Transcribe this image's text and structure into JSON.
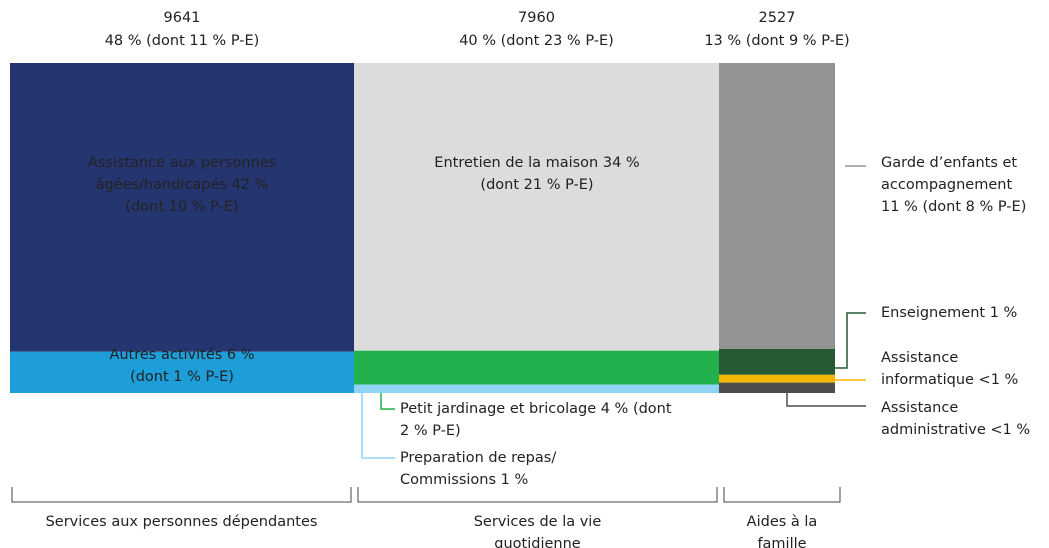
{
  "chart_data": {
    "type": "mekko",
    "columns": [
      {
        "name": [
          "Services aux personnes dépendantes"
        ],
        "total": 9641,
        "share": "48 % (dont 11 % P-E)",
        "segments": [
          {
            "value": 42,
            "color": "#253570",
            "label": [
              "Assistance aux personnes",
              "âgées/handicapés 42 %",
              "(dont 10 % P-E)"
            ]
          },
          {
            "value": 6,
            "color": "#1e9ed9",
            "label": [
              "Autres activités 6 %",
              "(dont 1 % P-E)"
            ]
          }
        ]
      },
      {
        "name": [
          "Services de la vie",
          "quotidienne"
        ],
        "total": 7960,
        "share": "40 % (dont 23 % P-E)",
        "segments": [
          {
            "value": 34,
            "color": "#dcdcdd",
            "label": [
              "Entretien de la maison 34 %",
              "(dont 21 % P-E)"
            ]
          },
          {
            "value": 4,
            "color": "#22b14c",
            "label": [
              "Petit jardinage et bricolage 4 % (dont",
              "2 % P-E)"
            ]
          },
          {
            "value": 1,
            "color": "#8fd3f5",
            "label": [
              "Preparation de repas/",
              "Commissions 1 %"
            ]
          }
        ]
      },
      {
        "name": [
          "Aides à la",
          "famille"
        ],
        "total": 2527,
        "share": "13 % (dont 9 % P-E)",
        "segments": [
          {
            "value": 11,
            "color": "#939393",
            "label": [
              "Garde d’enfants et",
              "accompagnement",
              "11 % (dont 8 % P-E)"
            ]
          },
          {
            "value": 1,
            "color": "#245a34",
            "label": [
              "Enseignement 1 %"
            ]
          },
          {
            "value": 0.3,
            "color": "#f5b800",
            "label": [
              "Assistance",
              "informatique <1 %"
            ]
          },
          {
            "value": 0.4,
            "color": "#4d4d4d",
            "label": [
              "Assistance",
              "administrative <1 %"
            ]
          }
        ]
      }
    ]
  }
}
